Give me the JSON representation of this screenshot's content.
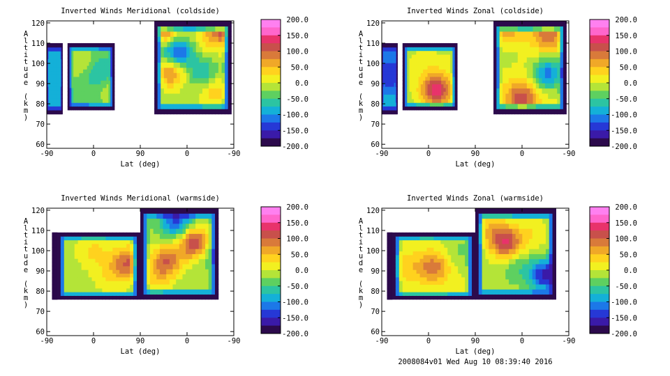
{
  "figure": {
    "footer": "2008084v01 Wed Aug 10 08:39:40 2016"
  },
  "colorbar": {
    "min": -200,
    "max": 200,
    "step": 25,
    "tick_labels": [
      "200.0",
      "150.0",
      "100.0",
      "50.0",
      "0.0",
      "-50.0",
      "-100.0",
      "-150.0",
      "-200.0"
    ],
    "colors": [
      "#ff80f0",
      "#ff66cc",
      "#e8336b",
      "#c8504b",
      "#d97a3a",
      "#f0a828",
      "#ffd21e",
      "#f2f020",
      "#b4e438",
      "#5ed060",
      "#2cc4a2",
      "#14b0d8",
      "#1c78e8",
      "#2638d6",
      "#3a1aa8",
      "#2c0a4c"
    ]
  },
  "chart_data": [
    {
      "type": "heatmap",
      "title": "Inverted Winds Meridional (coldside)",
      "xlabel": "Lat (deg)",
      "ylabel": "Altitude (km)",
      "x_tick_labels": [
        "-90",
        "0",
        "90",
        "0",
        "-90"
      ],
      "y_ticks": [
        60,
        70,
        80,
        90,
        100,
        110,
        120
      ],
      "ylim": [
        58,
        121
      ],
      "regions": [
        {
          "x0": -90,
          "x1": -60,
          "y0": 75,
          "y1": 110,
          "base": -100,
          "blobs": [
            [
              -75,
              95,
              20
            ]
          ]
        },
        {
          "x0": -50,
          "x1": 40,
          "y0": 77,
          "y1": 110,
          "base": -40,
          "blobs": [
            [
              -20,
              100,
              45
            ],
            [
              10,
              95,
              -55
            ],
            [
              30,
              88,
              40
            ]
          ]
        },
        {
          "x0": 117,
          "x1": 265,
          "y0": 75,
          "y1": 121,
          "base": -10,
          "blobs": [
            [
              135,
              117,
              110
            ],
            [
              160,
              105,
              -150
            ],
            [
              150,
              97,
              110
            ],
            [
              210,
              95,
              -70
            ],
            [
              230,
              87,
              55
            ],
            [
              250,
              117,
              110
            ],
            [
              220,
              112,
              30
            ]
          ]
        }
      ]
    },
    {
      "type": "heatmap",
      "title": "Inverted Winds Zonal (coldside)",
      "xlabel": "Lat (deg)",
      "ylabel": "Altitude (km)",
      "x_tick_labels": [
        "-90",
        "0",
        "90",
        "0",
        "-90"
      ],
      "y_ticks": [
        60,
        70,
        80,
        90,
        100,
        110,
        120
      ],
      "ylim": [
        58,
        121
      ],
      "regions": [
        {
          "x0": -90,
          "x1": -60,
          "y0": 75,
          "y1": 110,
          "base": -90,
          "blobs": [
            [
              -75,
              95,
              -60
            ]
          ]
        },
        {
          "x0": -50,
          "x1": 55,
          "y0": 77,
          "y1": 110,
          "base": -10,
          "blobs": [
            [
              15,
              87,
              150
            ],
            [
              -10,
              100,
              20
            ],
            [
              40,
              100,
              10
            ]
          ]
        },
        {
          "x0": 125,
          "x1": 265,
          "y0": 75,
          "y1": 121,
          "base": 10,
          "blobs": [
            [
              150,
              117,
              60
            ],
            [
              230,
              115,
              90
            ],
            [
              230,
              95,
              -120
            ],
            [
              180,
              83,
              110
            ],
            [
              150,
              105,
              -20
            ]
          ]
        }
      ]
    },
    {
      "type": "heatmap",
      "title": "Inverted Winds Meridional (warmside)",
      "xlabel": "Lat (deg)",
      "ylabel": "Altitude (km)",
      "x_tick_labels": [
        "-90",
        "0",
        "90",
        "0",
        "-90"
      ],
      "y_ticks": [
        60,
        70,
        80,
        90,
        100,
        110,
        120
      ],
      "ylim": [
        58,
        121
      ],
      "regions": [
        {
          "x0": -80,
          "x1": -70,
          "y0": 76,
          "y1": 109,
          "base": -200,
          "blobs": []
        },
        {
          "x0": -70,
          "x1": 90,
          "y0": 76,
          "y1": 109,
          "base": -10,
          "blobs": [
            [
              65,
              94,
              110
            ],
            [
              0,
              100,
              40
            ],
            [
              30,
              88,
              30
            ]
          ]
        },
        {
          "x0": 90,
          "x1": 240,
          "y0": 76,
          "y1": 121,
          "base": -20,
          "blobs": [
            [
              140,
              95,
              120
            ],
            [
              195,
              104,
              150
            ],
            [
              160,
              115,
              -120
            ],
            [
              230,
              100,
              -50
            ],
            [
              120,
              85,
              40
            ]
          ]
        }
      ]
    },
    {
      "type": "heatmap",
      "title": "Inverted Winds Zonal (warmside)",
      "xlabel": "Lat (deg)",
      "ylabel": "Altitude (km)",
      "x_tick_labels": [
        "-90",
        "0",
        "90",
        "0",
        "-90"
      ],
      "y_ticks": [
        60,
        70,
        80,
        90,
        100,
        110,
        120
      ],
      "ylim": [
        58,
        121
      ],
      "regions": [
        {
          "x0": -80,
          "x1": -70,
          "y0": 76,
          "y1": 109,
          "base": -200,
          "blobs": []
        },
        {
          "x0": -70,
          "x1": 90,
          "y0": 76,
          "y1": 109,
          "base": 0,
          "blobs": [
            [
              10,
              92,
              90
            ],
            [
              -40,
              92,
              40
            ],
            [
              60,
              100,
              -30
            ]
          ]
        },
        {
          "x0": 90,
          "x1": 245,
          "y0": 76,
          "y1": 121,
          "base": -10,
          "blobs": [
            [
              150,
              104,
              130
            ],
            [
              120,
              110,
              50
            ],
            [
              200,
              108,
              30
            ],
            [
              225,
              88,
              -150
            ],
            [
              170,
              92,
              -40
            ]
          ]
        }
      ]
    }
  ]
}
